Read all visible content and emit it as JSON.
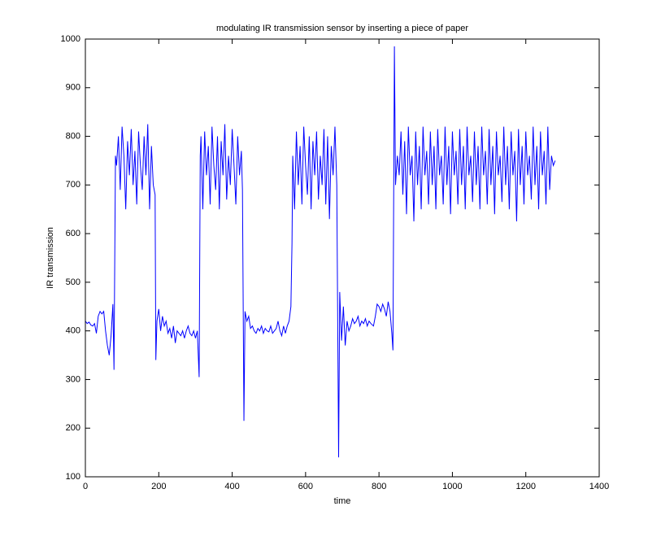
{
  "chart_data": {
    "type": "line",
    "title": "modulating IR transmission sensor by inserting a piece of paper",
    "x_label": "time",
    "y_label": "IR transmission",
    "xlim": [
      0,
      1400
    ],
    "xticks": [
      0,
      200,
      400,
      600,
      800,
      1000,
      1200,
      1400
    ],
    "ylim": [
      100,
      1000
    ],
    "yticks": [
      100,
      200,
      300,
      400,
      500,
      600,
      700,
      800,
      900,
      1000
    ],
    "grid": false,
    "x": [
      0,
      5,
      10,
      15,
      20,
      25,
      30,
      35,
      40,
      45,
      50,
      55,
      60,
      65,
      70,
      75,
      78,
      82,
      85,
      90,
      95,
      100,
      105,
      110,
      115,
      120,
      125,
      130,
      135,
      140,
      145,
      150,
      155,
      160,
      165,
      170,
      175,
      180,
      185,
      190,
      192,
      195,
      200,
      205,
      210,
      215,
      220,
      225,
      230,
      235,
      240,
      245,
      250,
      255,
      260,
      265,
      270,
      275,
      280,
      285,
      290,
      295,
      300,
      305,
      310,
      313,
      315,
      320,
      325,
      330,
      335,
      340,
      345,
      350,
      355,
      360,
      365,
      370,
      375,
      380,
      385,
      390,
      395,
      400,
      405,
      410,
      415,
      420,
      425,
      428,
      432,
      435,
      440,
      445,
      450,
      455,
      460,
      465,
      470,
      475,
      480,
      485,
      490,
      495,
      500,
      505,
      510,
      515,
      520,
      525,
      530,
      535,
      540,
      545,
      550,
      555,
      560,
      563,
      565,
      570,
      575,
      580,
      585,
      590,
      595,
      600,
      605,
      610,
      615,
      620,
      625,
      630,
      635,
      640,
      645,
      650,
      655,
      660,
      665,
      670,
      675,
      680,
      685,
      690,
      693,
      698,
      703,
      708,
      713,
      718,
      723,
      728,
      733,
      738,
      743,
      748,
      753,
      758,
      763,
      768,
      773,
      778,
      785,
      790,
      795,
      800,
      805,
      810,
      815,
      820,
      825,
      830,
      835,
      838,
      842,
      845,
      850,
      855,
      860,
      865,
      870,
      875,
      880,
      885,
      890,
      895,
      900,
      905,
      910,
      915,
      920,
      925,
      930,
      935,
      940,
      945,
      950,
      955,
      960,
      965,
      970,
      975,
      980,
      985,
      990,
      995,
      1000,
      1005,
      1010,
      1015,
      1020,
      1025,
      1030,
      1035,
      1040,
      1045,
      1050,
      1055,
      1060,
      1065,
      1070,
      1075,
      1080,
      1085,
      1090,
      1095,
      1100,
      1105,
      1110,
      1115,
      1120,
      1125,
      1130,
      1135,
      1140,
      1145,
      1150,
      1155,
      1160,
      1165,
      1170,
      1175,
      1180,
      1185,
      1190,
      1195,
      1200,
      1205,
      1210,
      1215,
      1220,
      1225,
      1230,
      1235,
      1240,
      1245,
      1250,
      1255,
      1260,
      1265,
      1270,
      1275,
      1280
    ],
    "series": [
      {
        "color": "#0000ff",
        "values": [
          420,
          415,
          418,
          412,
          410,
          415,
          395,
          430,
          440,
          435,
          440,
          400,
          370,
          350,
          390,
          455,
          320,
          760,
          740,
          800,
          690,
          820,
          760,
          650,
          790,
          720,
          815,
          700,
          770,
          660,
          810,
          740,
          690,
          800,
          720,
          825,
          650,
          780,
          700,
          680,
          340,
          420,
          445,
          400,
          430,
          410,
          420,
          395,
          405,
          385,
          410,
          375,
          400,
          395,
          390,
          400,
          385,
          400,
          410,
          395,
          390,
          400,
          385,
          400,
          305,
          760,
          800,
          650,
          810,
          720,
          780,
          660,
          820,
          740,
          690,
          800,
          650,
          790,
          720,
          825,
          670,
          760,
          700,
          815,
          740,
          660,
          800,
          720,
          770,
          690,
          215,
          440,
          420,
          430,
          405,
          410,
          400,
          395,
          405,
          400,
          410,
          395,
          405,
          400,
          398,
          410,
          395,
          400,
          405,
          420,
          400,
          390,
          410,
          395,
          410,
          420,
          450,
          580,
          760,
          650,
          810,
          700,
          780,
          660,
          820,
          740,
          680,
          800,
          650,
          790,
          720,
          810,
          670,
          760,
          700,
          815,
          660,
          800,
          630,
          780,
          720,
          820,
          700,
          140,
          480,
          380,
          450,
          370,
          420,
          400,
          410,
          425,
          415,
          420,
          430,
          410,
          420,
          415,
          425,
          410,
          420,
          415,
          410,
          430,
          455,
          450,
          440,
          455,
          445,
          430,
          460,
          440,
          395,
          360,
          985,
          700,
          760,
          720,
          810,
          680,
          790,
          640,
          820,
          720,
          760,
          625,
          810,
          700,
          780,
          650,
          820,
          720,
          770,
          660,
          810,
          700,
          780,
          650,
          815,
          720,
          760,
          660,
          820,
          700,
          780,
          640,
          810,
          720,
          770,
          660,
          815,
          700,
          780,
          650,
          820,
          720,
          760,
          665,
          810,
          700,
          780,
          650,
          820,
          720,
          770,
          660,
          815,
          700,
          780,
          640,
          810,
          720,
          760,
          665,
          820,
          700,
          780,
          650,
          810,
          720,
          770,
          625,
          815,
          700,
          780,
          660,
          810,
          720,
          760,
          670,
          820,
          700,
          780,
          650,
          810,
          720,
          770,
          660,
          820,
          690,
          760,
          740,
          750
        ]
      }
    ]
  }
}
